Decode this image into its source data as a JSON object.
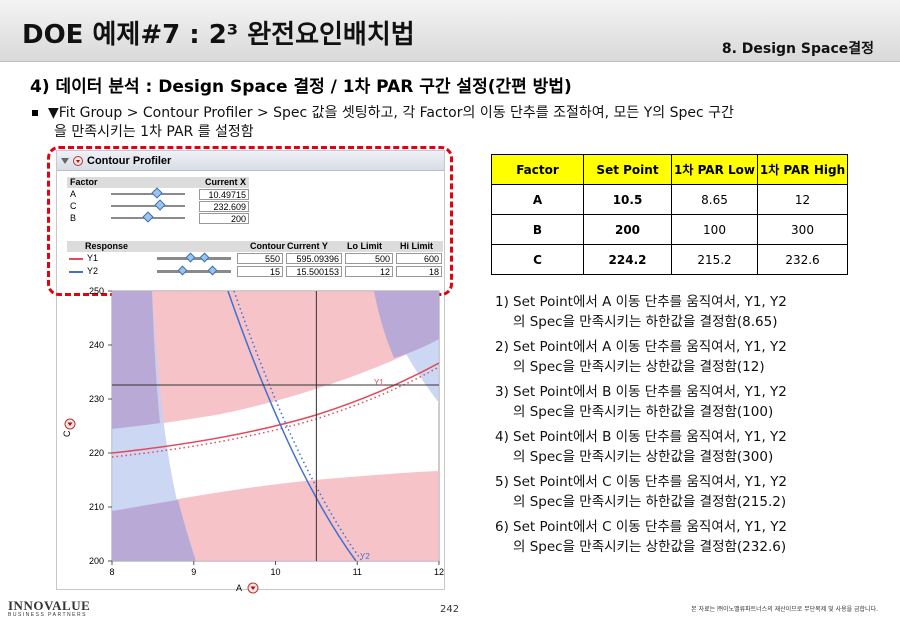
{
  "header": {
    "title": "DOE 예제#7 : 2³ 완전요인배치법",
    "chapter": "8. Design Space결정"
  },
  "section": {
    "subtitle": "4) 데이터 분석 : Design Space 결정 / 1차 PAR 구간 설정(간편 방법)",
    "bullet_line1": "▼Fit Group > Contour Profiler > Spec 값을 셋팅하고, 각 Factor의 이동 단추를 조절하여, 모든 Y의 Spec 구간",
    "bullet_line2": "을 만족시키는 1차 PAR 를 설정함"
  },
  "profiler": {
    "title": "Contour Profiler",
    "factor_header": "Factor",
    "current_x_header": "Current X",
    "factors": [
      {
        "name": "A",
        "value": "10.49715",
        "pos": 0.62
      },
      {
        "name": "C",
        "value": "232.609",
        "pos": 0.66
      },
      {
        "name": "B",
        "value": "200",
        "pos": 0.5
      }
    ],
    "response_headers": {
      "response": "Response",
      "contour": "Contour",
      "current_y": "Current Y",
      "lo_limit": "Lo Limit",
      "hi_limit": "Hi Limit"
    },
    "responses": [
      {
        "name": "Y1",
        "color": "#e04a5a",
        "contour": "550",
        "current_y": "595.09396",
        "lo": "500",
        "hi": "600"
      },
      {
        "name": "Y2",
        "color": "#3f6fd0",
        "contour": "15",
        "current_y": "15.500153",
        "lo": "12",
        "hi": "18"
      }
    ]
  },
  "chart_data": {
    "type": "contour",
    "xlabel": "A",
    "ylabel": "C",
    "xlim": [
      8,
      12
    ],
    "ylim": [
      200,
      250
    ],
    "x_ticks": [
      "8",
      "9",
      "10",
      "11",
      "12"
    ],
    "y_ticks": [
      "200",
      "210",
      "220",
      "230",
      "240",
      "250"
    ],
    "crosshair": {
      "x": 10.5,
      "y": 232.6
    },
    "series_labels": [
      "Y1",
      "Y2"
    ],
    "colors": {
      "pink": "#f4b8c0",
      "blue": "#c3d0f2",
      "purple": "#b9a9d6"
    }
  },
  "par_table": {
    "headers": [
      "Factor",
      "Set Point",
      "1차 PAR Low",
      "1차 PAR High"
    ],
    "rows": [
      [
        "A",
        "10.5",
        "8.65",
        "12"
      ],
      [
        "B",
        "200",
        "100",
        "300"
      ],
      [
        "C",
        "224.2",
        "215.2",
        "232.6"
      ]
    ]
  },
  "notes": [
    {
      "num": "1)",
      "line1": "Set Point에서 A 이동 단추를 움직여서, Y1, Y2",
      "line2": "의 Spec을 만족시키는 하한값을 결정함(8.65)"
    },
    {
      "num": "2)",
      "line1": "Set Point에서 A 이동 단추를 움직여서, Y1, Y2",
      "line2": "의 Spec을 만족시키는 상한값을 결정함(12)"
    },
    {
      "num": "3)",
      "line1": "Set Point에서 B 이동 단추를 움직여서, Y1, Y2",
      "line2": "의 Spec을 만족시키는 하한값을 결정함(100)"
    },
    {
      "num": "4)",
      "line1": "Set Point에서 B 이동 단추를 움직여서, Y1, Y2",
      "line2": "의 Spec을 만족시키는 상한값을 결정함(300)"
    },
    {
      "num": "5)",
      "line1": "Set Point에서 C 이동 단추를 움직여서, Y1, Y2",
      "line2": "의 Spec을 만족시키는 하한값을 결정함(215.2)"
    },
    {
      "num": "6)",
      "line1": "Set Point에서 C 이동 단추를 움직여서, Y1, Y2",
      "line2": "의 Spec을 만족시키는 상한값을 결정함(232.6)"
    }
  ],
  "footer": {
    "logo": "INNOVALUE",
    "logo_sub": "BUSINESS PARTNERS",
    "page": "242",
    "copyright": "본 자료는 ㈜이노밸류파트너스의 재산이므로 무단복제 및 사용을 금합니다."
  }
}
